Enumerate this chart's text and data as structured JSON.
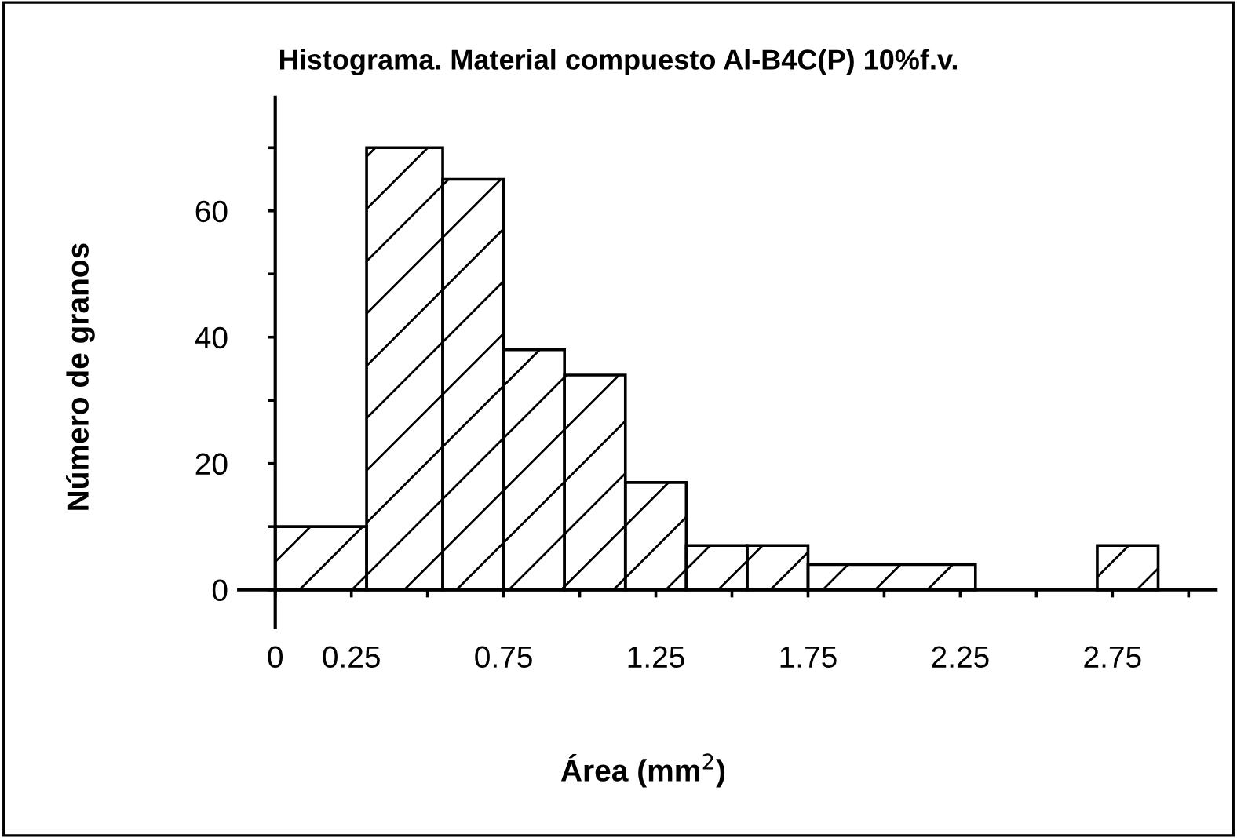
{
  "chart_data": {
    "type": "histogram",
    "title": "Histograma. Material compuesto Al-B4C(P) 10%f.v.",
    "xlabel": "Área (mm$^{2}$)",
    "ylabel": "Número de granos",
    "bins": [
      0,
      0.3,
      0.55,
      0.75,
      0.95,
      1.15,
      1.35,
      1.55,
      1.75,
      2.3,
      2.7,
      2.9
    ],
    "values": [
      10,
      70,
      65,
      38,
      34,
      17,
      7,
      7,
      4,
      0,
      7
    ],
    "color": "#000000",
    "xlim": [
      -0.12,
      3.09
    ],
    "ylim": [
      -6,
      78
    ],
    "xticks": [
      0,
      0.25,
      {
        "value": 0.5,
        "label": null
      },
      0.75,
      {
        "value": 1.0,
        "label": null
      },
      1.25,
      {
        "value": 1.5,
        "label": null
      },
      1.75,
      {
        "value": 2.0,
        "label": null
      },
      2.25,
      {
        "value": 2.5,
        "label": null
      },
      2.75,
      {
        "value": 3.0,
        "label": null
      }
    ],
    "yticks": [
      0,
      {
        "value": 10,
        "label": null
      },
      20,
      {
        "value": 30,
        "label": null
      },
      40,
      {
        "value": 50,
        "label": null
      },
      60,
      {
        "value": 70,
        "label": null
      }
    ],
    "grid": false
  }
}
